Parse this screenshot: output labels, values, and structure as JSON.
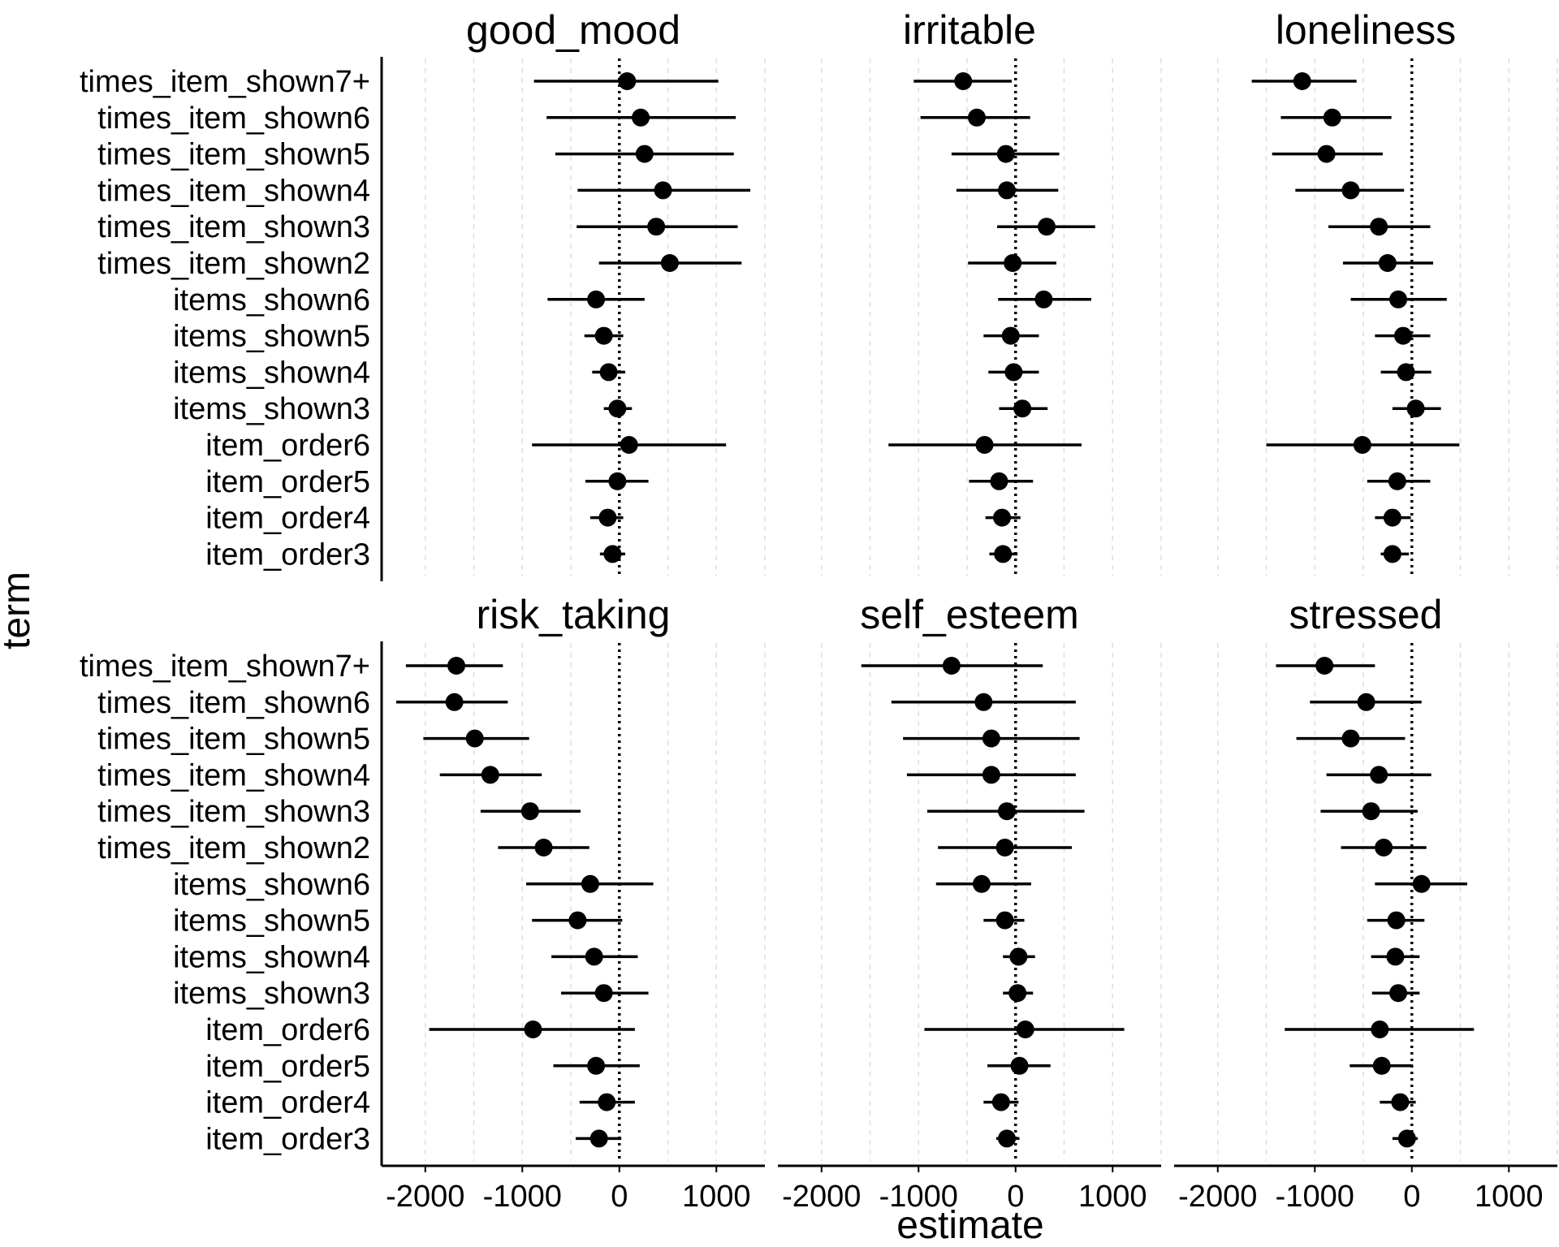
{
  "chart_data": {
    "type": "forest",
    "xlabel": "estimate",
    "ylabel": "term",
    "xlim": [
      -2450,
      1500
    ],
    "xticks": [
      -2000,
      -1000,
      0,
      1000
    ],
    "xtick_labels": [
      "-2000",
      "-1000",
      "0",
      "1000"
    ],
    "terms": [
      "times_item_shown7+",
      "times_item_shown6",
      "times_item_shown5",
      "times_item_shown4",
      "times_item_shown3",
      "times_item_shown2",
      "items_shown6",
      "items_shown5",
      "items_shown4",
      "items_shown3",
      "item_order6",
      "item_order5",
      "item_order4",
      "item_order3"
    ],
    "reference_line": 0,
    "panels": [
      {
        "title": "good_mood",
        "estimate": [
          80,
          220,
          260,
          450,
          380,
          520,
          -240,
          -160,
          -110,
          -20,
          100,
          -20,
          -120,
          -70
        ],
        "low": [
          -880,
          -750,
          -660,
          -430,
          -440,
          -210,
          -740,
          -360,
          -280,
          -160,
          -900,
          -350,
          -300,
          -200
        ],
        "high": [
          1020,
          1200,
          1180,
          1350,
          1220,
          1260,
          260,
          40,
          60,
          130,
          1100,
          300,
          40,
          60
        ]
      },
      {
        "title": "irritable",
        "estimate": [
          -540,
          -400,
          -100,
          -90,
          320,
          -30,
          290,
          -50,
          -20,
          70,
          -320,
          -170,
          -140,
          -130
        ],
        "low": [
          -1050,
          -980,
          -660,
          -610,
          -190,
          -490,
          -180,
          -330,
          -280,
          -170,
          -1310,
          -480,
          -310,
          -270
        ],
        "high": [
          -40,
          150,
          450,
          440,
          820,
          420,
          780,
          240,
          240,
          330,
          680,
          180,
          50,
          20
        ]
      },
      {
        "title": "loneliness",
        "estimate": [
          -1130,
          -820,
          -880,
          -630,
          -340,
          -250,
          -140,
          -90,
          -60,
          40,
          -510,
          -150,
          -200,
          -200
        ],
        "low": [
          -1650,
          -1350,
          -1440,
          -1200,
          -860,
          -710,
          -630,
          -380,
          -320,
          -200,
          -1500,
          -460,
          -380,
          -320
        ],
        "high": [
          -570,
          -210,
          -300,
          -80,
          190,
          220,
          360,
          190,
          200,
          300,
          490,
          190,
          -10,
          -30
        ]
      },
      {
        "title": "risk_taking",
        "estimate": [
          -1680,
          -1700,
          -1490,
          -1330,
          -920,
          -780,
          -300,
          -430,
          -260,
          -160,
          -890,
          -240,
          -130,
          -210
        ],
        "low": [
          -2200,
          -2300,
          -2020,
          -1850,
          -1430,
          -1250,
          -960,
          -900,
          -700,
          -600,
          -1960,
          -680,
          -410,
          -450
        ],
        "high": [
          -1200,
          -1150,
          -930,
          -800,
          -400,
          -310,
          350,
          30,
          190,
          300,
          160,
          210,
          160,
          20
        ]
      },
      {
        "title": "self_esteem",
        "estimate": [
          -660,
          -330,
          -250,
          -250,
          -90,
          -110,
          -350,
          -110,
          30,
          20,
          100,
          40,
          -150,
          -90
        ],
        "low": [
          -1590,
          -1280,
          -1160,
          -1120,
          -910,
          -800,
          -820,
          -330,
          -130,
          -130,
          -940,
          -290,
          -330,
          -200
        ],
        "high": [
          280,
          620,
          660,
          620,
          710,
          580,
          160,
          90,
          200,
          180,
          1120,
          360,
          30,
          40
        ]
      },
      {
        "title": "stressed",
        "estimate": [
          -900,
          -470,
          -630,
          -340,
          -420,
          -290,
          100,
          -160,
          -170,
          -140,
          -330,
          -310,
          -120,
          -50
        ],
        "low": [
          -1400,
          -1050,
          -1190,
          -880,
          -940,
          -730,
          -380,
          -460,
          -420,
          -410,
          -1310,
          -640,
          -330,
          -200
        ],
        "high": [
          -380,
          100,
          -70,
          200,
          60,
          150,
          570,
          130,
          80,
          80,
          640,
          10,
          40,
          60
        ]
      }
    ]
  }
}
